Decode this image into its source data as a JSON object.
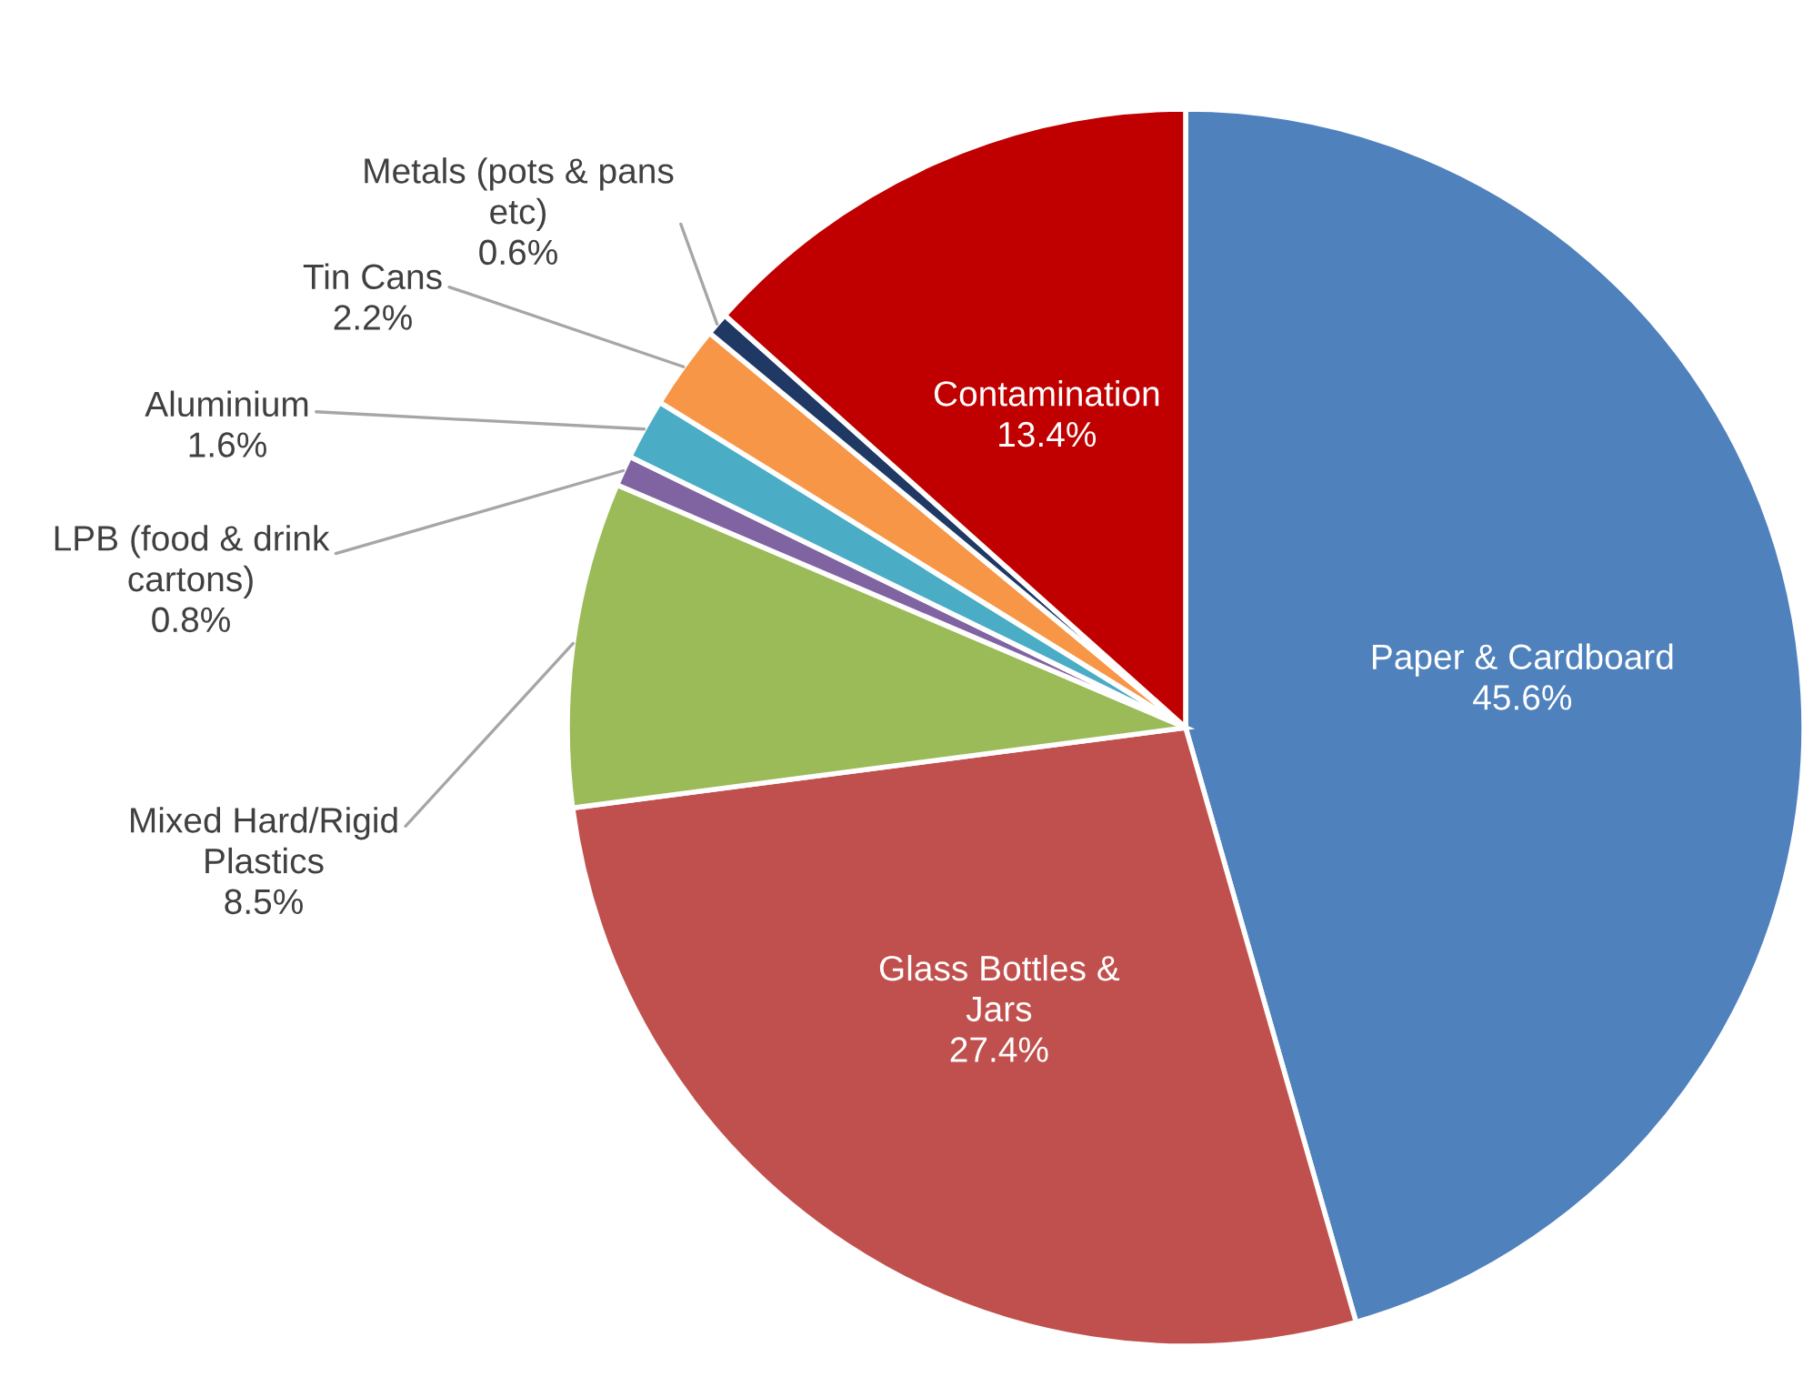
{
  "chart_data": {
    "type": "pie",
    "categories": [
      "Paper & Cardboard",
      "Glass Bottles &\nJars",
      "Mixed Hard/Rigid\nPlastics",
      "LPB (food & drink\ncartons)",
      "Aluminium",
      "Tin Cans",
      "Metals (pots & pans\netc)",
      "Contamination"
    ],
    "values": [
      45.6,
      27.4,
      8.5,
      0.8,
      1.6,
      2.2,
      0.6,
      13.4
    ],
    "value_labels": [
      "45.6%",
      "27.4%",
      "8.5%",
      "0.8%",
      "1.6%",
      "2.2%",
      "0.6%",
      "13.4%"
    ],
    "colors": [
      "#4f81bd",
      "#c0504d",
      "#9bbb59",
      "#8064a2",
      "#4bacc6",
      "#f79646",
      "#1f3864",
      "#c00000"
    ]
  }
}
